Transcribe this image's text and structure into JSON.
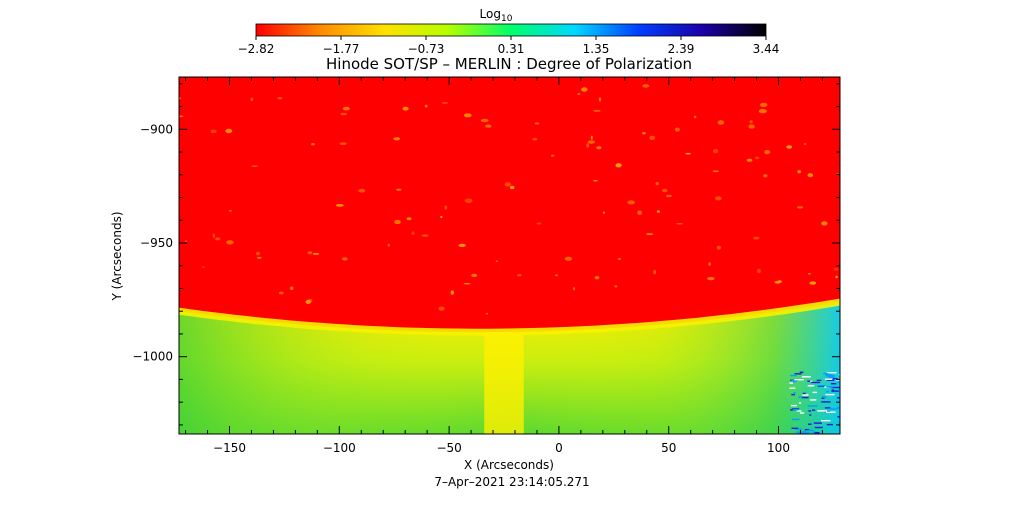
{
  "chart_data": {
    "type": "heatmap",
    "title": "Hinode SOT/SP – MERLIN : Degree of Polarization",
    "xlabel": "X (Arcseconds)",
    "ylabel": "Y (Arcseconds)",
    "date_label": "7–Apr–2021 23:14:05.271",
    "xlim": [
      -173,
      128
    ],
    "ylim": [
      -1034,
      -877
    ],
    "xticks": [
      -150,
      -100,
      -50,
      0,
      50,
      100
    ],
    "yticks": [
      -900,
      -950,
      -1000
    ],
    "xtick_labels": [
      "−150",
      "−100",
      "−50",
      "0",
      "50",
      "100"
    ],
    "ytick_labels": [
      "−900",
      "−950",
      "−1000"
    ],
    "limb": {
      "left_y": -980,
      "center_x": -15,
      "center_y": -989,
      "right_y": -976
    },
    "colorbar": {
      "label": "Log",
      "label_sub": "10",
      "range": [
        -2.82,
        3.44
      ],
      "tick_labels": [
        "−2.82",
        "−1.77",
        "−0.73",
        "0.31",
        "1.35",
        "2.39",
        "3.44"
      ],
      "colors": [
        "#ff0000",
        "#ff8a00",
        "#ffe000",
        "#b6ff00",
        "#00ff6a",
        "#00d8ff",
        "#0040ff",
        "#1a00a8",
        "#000000"
      ]
    },
    "colors": {
      "disk": "#ff0000",
      "limb_band": "#f5f000",
      "limb_green": "#5fe030",
      "right_edge": "#00c8ff"
    }
  }
}
